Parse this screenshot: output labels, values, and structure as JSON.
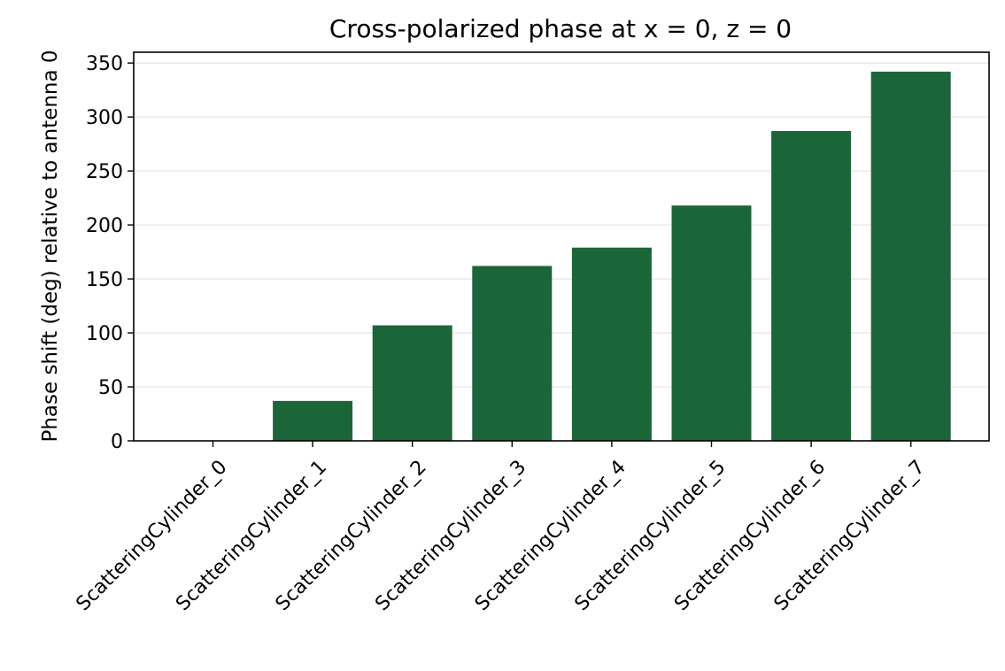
{
  "chart_data": {
    "type": "bar",
    "title": "Cross-polarized phase at x = 0, z = 0",
    "xlabel": "",
    "ylabel": "Phase shift (deg) relative to antenna 0",
    "categories": [
      "ScatteringCylinder_0",
      "ScatteringCylinder_1",
      "ScatteringCylinder_2",
      "ScatteringCylinder_3",
      "ScatteringCylinder_4",
      "ScatteringCylinder_5",
      "ScatteringCylinder_6",
      "ScatteringCylinder_7"
    ],
    "values": [
      0,
      37,
      107,
      162,
      179,
      218,
      287,
      342
    ],
    "ylim": [
      0,
      360
    ],
    "yticks": [
      0,
      50,
      100,
      150,
      200,
      250,
      300,
      350
    ],
    "grid": "horizontal",
    "bar_color": "#1b6638",
    "grid_color": "#e6e6e6"
  }
}
